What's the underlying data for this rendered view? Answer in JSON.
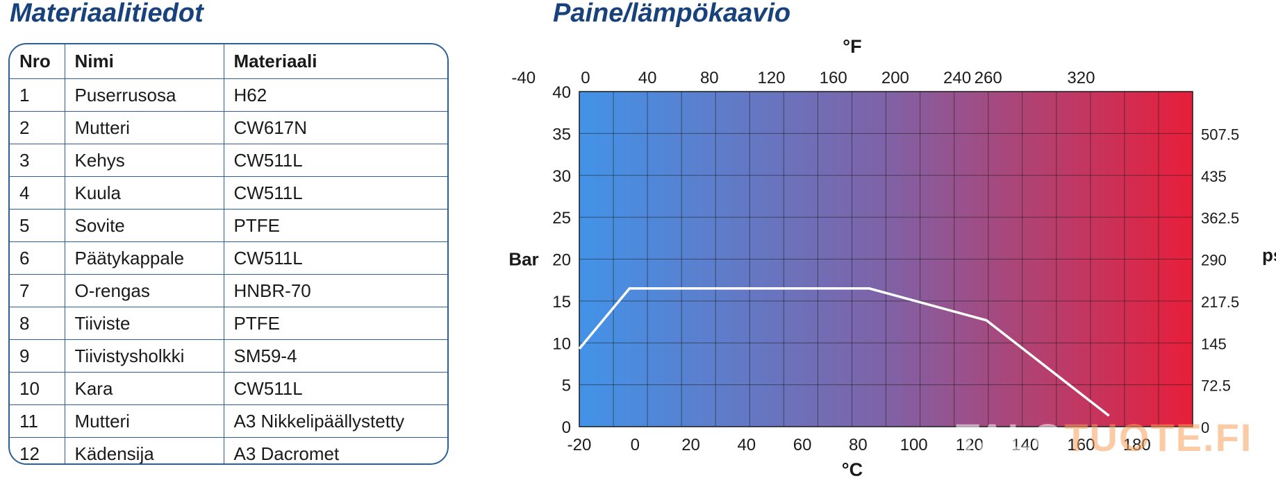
{
  "left_title": "Materiaalitiedot",
  "right_title": "Paine/lämpökaavio",
  "table": {
    "headers": [
      "Nro",
      "Nimi",
      "Materiaali"
    ],
    "rows": [
      [
        "1",
        "Puserrusosa",
        "H62"
      ],
      [
        "2",
        "Mutteri",
        "CW617N"
      ],
      [
        "3",
        "Kehys",
        "CW511L"
      ],
      [
        "4",
        "Kuula",
        "CW511L"
      ],
      [
        "5",
        "Sovite",
        "PTFE"
      ],
      [
        "6",
        "Päätykappale",
        "CW511L"
      ],
      [
        "7",
        "O-rengas",
        "HNBR-70"
      ],
      [
        "8",
        "Tiiviste",
        "PTFE"
      ],
      [
        "9",
        "Tiivistysholkki",
        "SM59-4"
      ],
      [
        "10",
        "Kara",
        "CW511L"
      ],
      [
        "11",
        "Mutteri",
        "A3 Nikkelipäällystetty"
      ],
      [
        "12",
        "Kädensija",
        "A3 Dacromet"
      ]
    ]
  },
  "chart_data": {
    "type": "line",
    "title": "",
    "xlabel": "°C",
    "x2label": "°F",
    "ylabel": "Bar",
    "y2label": "psi",
    "xlim": [
      -20,
      200
    ],
    "ylim": [
      0,
      40
    ],
    "x_ticks": [
      "-20",
      "0",
      "20",
      "40",
      "60",
      "80",
      "100",
      "120",
      "140",
      "160",
      "180"
    ],
    "x_tick_values": [
      -20,
      0,
      20,
      40,
      60,
      80,
      100,
      120,
      140,
      160,
      180
    ],
    "x2_ticks": [
      "-40",
      "0",
      "40",
      "80",
      "120",
      "160",
      "200",
      "240",
      "260",
      "320"
    ],
    "x2_tick_values": [
      -40,
      0,
      40,
      80,
      120,
      160,
      200,
      240,
      260,
      320
    ],
    "y_ticks": [
      "0",
      "5",
      "10",
      "15",
      "20",
      "25",
      "30",
      "35",
      "40"
    ],
    "y_tick_values": [
      0,
      5,
      10,
      15,
      20,
      25,
      30,
      35,
      40
    ],
    "y2_ticks": [
      "0",
      "72.5",
      "145",
      "217.5",
      "290",
      "362.5",
      "435",
      "507.5"
    ],
    "y2_tick_values": [
      0,
      5,
      10,
      15,
      20,
      25,
      30,
      35
    ],
    "grid": true,
    "background_gradient": [
      "#4293e8",
      "#7f62a6",
      "#e81e3a"
    ],
    "line_color": "#ffffff",
    "series": [
      {
        "x": [
          -20,
          -2,
          84,
          126,
          170
        ],
        "y": [
          9.3,
          16.5,
          16.5,
          12.7,
          1.3
        ]
      }
    ]
  },
  "watermark": {
    "part1": "TALO",
    "part2": "TUOTE.FI"
  }
}
